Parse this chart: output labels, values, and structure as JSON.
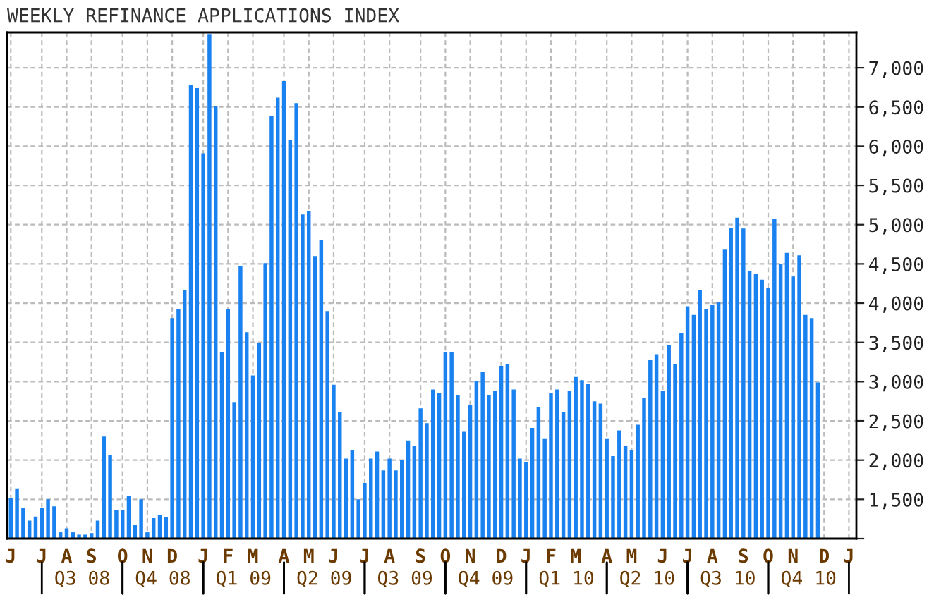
{
  "chart_data": {
    "type": "bar",
    "title": "WEEKLY REFINANCE APPLICATIONS INDEX",
    "categories": [
      "J",
      null,
      null,
      null,
      null,
      "J",
      null,
      null,
      null,
      "A",
      null,
      null,
      null,
      "S",
      null,
      null,
      null,
      null,
      "O",
      null,
      null,
      null,
      "N",
      null,
      null,
      null,
      "D",
      null,
      null,
      null,
      null,
      "J",
      null,
      null,
      null,
      "F",
      null,
      null,
      null,
      "M",
      null,
      null,
      null,
      null,
      "A",
      null,
      null,
      null,
      "M",
      null,
      null,
      null,
      "J",
      null,
      null,
      null,
      null,
      "J",
      null,
      null,
      null,
      "A",
      null,
      null,
      null,
      null,
      "S",
      null,
      null,
      null,
      "O",
      null,
      null,
      null,
      "N",
      null,
      null,
      null,
      null,
      "D",
      null,
      null,
      null,
      "J",
      null,
      null,
      null,
      "F",
      null,
      null,
      null,
      "M",
      null,
      null,
      null,
      null,
      "A",
      null,
      null,
      null,
      "M",
      null,
      null,
      null,
      null,
      "J",
      null,
      null,
      null,
      "J",
      null,
      null,
      null,
      "A",
      null,
      null,
      null,
      null,
      "S",
      null,
      null,
      null,
      "O",
      null,
      null,
      null,
      "N",
      null,
      null,
      null,
      null,
      "D",
      null,
      null,
      null,
      "J"
    ],
    "values": [
      1520,
      1640,
      1390,
      1230,
      1280,
      1390,
      1500,
      1410,
      1080,
      1130,
      1080,
      1050,
      1050,
      1070,
      1230,
      2300,
      2060,
      1360,
      1360,
      1540,
      1180,
      1500,
      1080,
      1260,
      1300,
      1270,
      3810,
      3920,
      4170,
      6780,
      6740,
      5910,
      7430,
      6510,
      3380,
      3920,
      2740,
      4470,
      3630,
      3080,
      3490,
      4510,
      6380,
      6620,
      6830,
      6080,
      6550,
      5130,
      5170,
      4600,
      4800,
      3900,
      2960,
      2610,
      2020,
      2130,
      1500,
      1710,
      2020,
      2110,
      1870,
      2020,
      1870,
      2000,
      2250,
      2180,
      2660,
      2470,
      2900,
      2860,
      3380,
      3380,
      2830,
      2360,
      2700,
      3010,
      3130,
      2830,
      2880,
      3200,
      3220,
      2900,
      2020,
      1980,
      2410,
      2680,
      2270,
      2860,
      2900,
      2610,
      2880,
      3060,
      3020,
      2970,
      2750,
      2720,
      2270,
      2050,
      2380,
      2180,
      2130,
      2450,
      2790,
      3280,
      3350,
      2880,
      3470,
      3220,
      3620,
      3960,
      3850,
      4170,
      3920,
      3980,
      4010,
      4690,
      4960,
      5090,
      4950,
      4410,
      4370,
      4300,
      4190,
      5070,
      4500,
      4640,
      4340,
      4610,
      3850,
      3810,
      2990,
      null,
      null,
      null,
      null,
      null
    ],
    "color": "#1a82f0",
    "annotations": [
      "Q3 08",
      "Q4 08",
      "Q1 09",
      "Q2 09",
      "Q3 09",
      "Q4 09",
      "Q1 10",
      "Q2 10",
      "Q3 10",
      "Q4 10"
    ],
    "ylim": [
      1000,
      7450
    ],
    "yticks": [
      {
        "value": 1000,
        "label": null
      },
      {
        "value": 1500,
        "label": "1,500"
      },
      {
        "value": 2000,
        "label": "2,000"
      },
      {
        "value": 2500,
        "label": "2,500"
      },
      {
        "value": 3000,
        "label": "3,000"
      },
      {
        "value": 3500,
        "label": "3,500"
      },
      {
        "value": 4000,
        "label": "4,000"
      },
      {
        "value": 4500,
        "label": "4,500"
      },
      {
        "value": 5000,
        "label": "5,000"
      },
      {
        "value": 5500,
        "label": "5,500"
      },
      {
        "value": 6000,
        "label": "6,000"
      },
      {
        "value": 6500,
        "label": "6,500"
      },
      {
        "value": 7000,
        "label": "7,000"
      }
    ],
    "grid": true
  }
}
